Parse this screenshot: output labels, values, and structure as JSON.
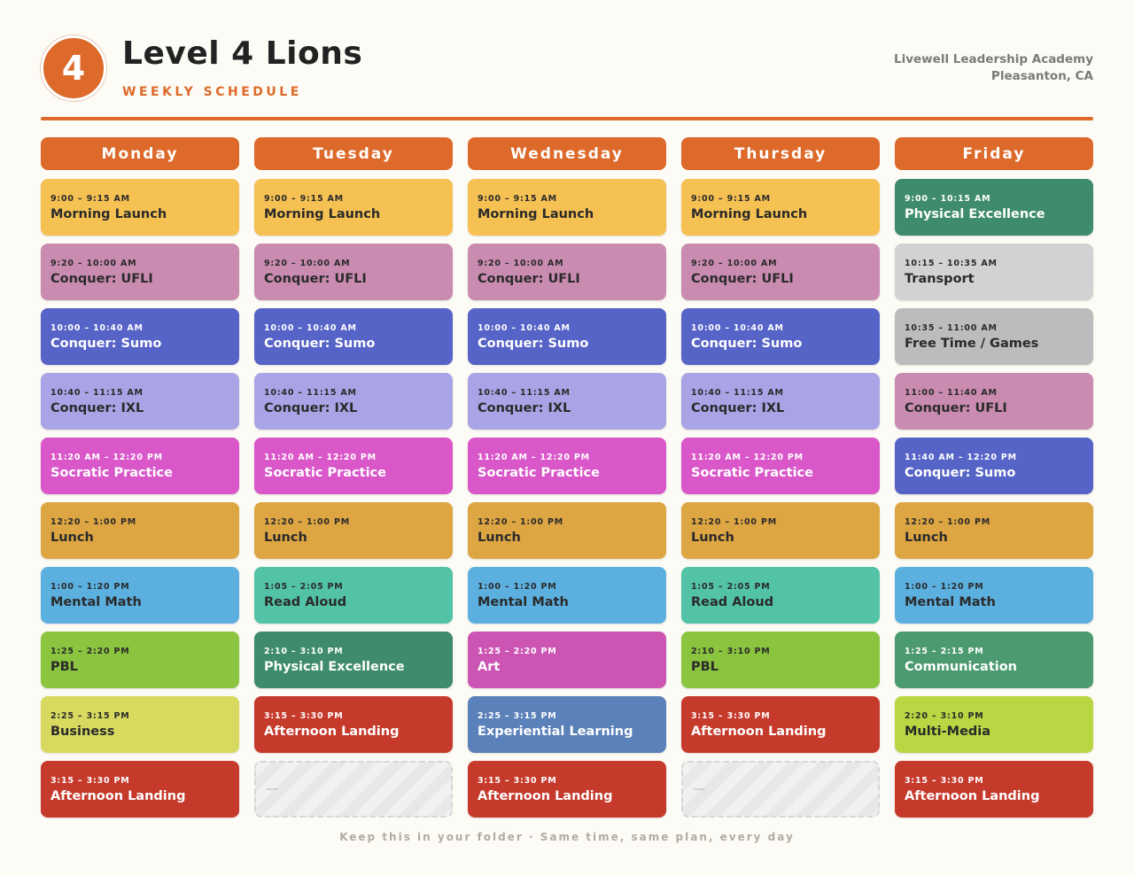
{
  "header": {
    "badge": "4",
    "title": "Level 4 Lions",
    "subtitle": "WEEKLY SCHEDULE",
    "school_name": "Livewell Leadership Academy",
    "school_location": "Pleasanton, CA"
  },
  "accent_color": "#dd6a2a",
  "days": [
    {
      "name": "Monday",
      "blocks": [
        {
          "time": "9:00 – 9:15 AM",
          "name": "Morning Launch",
          "color": "#f5c152",
          "text": "dark"
        },
        {
          "time": "9:20 – 10:00 AM",
          "name": "Conquer: UFLI",
          "color": "#c98bb0",
          "text": "dark"
        },
        {
          "time": "10:00 – 10:40 AM",
          "name": "Conquer: Sumo",
          "color": "#5663c7",
          "text": "light"
        },
        {
          "time": "10:40 – 11:15 AM",
          "name": "Conquer: IXL",
          "color": "#a9a4e6",
          "text": "dark"
        },
        {
          "time": "11:20 AM – 12:20 PM",
          "name": "Socratic Practice",
          "color": "#d957c9",
          "text": "light"
        },
        {
          "time": "12:20 – 1:00 PM",
          "name": "Lunch",
          "color": "#dea643",
          "text": "dark"
        },
        {
          "time": "1:00 – 1:20 PM",
          "name": "Mental Math",
          "color": "#5cb0e0",
          "text": "dark"
        },
        {
          "time": "1:25 – 2:20 PM",
          "name": "PBL",
          "color": "#8bc43f",
          "text": "dark"
        },
        {
          "time": "2:25 – 3:15 PM",
          "name": "Business",
          "color": "#d7da5e",
          "text": "dark"
        },
        {
          "time": "3:15 – 3:30 PM",
          "name": "Afternoon Landing",
          "color": "#c63a2c",
          "text": "light"
        }
      ]
    },
    {
      "name": "Tuesday",
      "blocks": [
        {
          "time": "9:00 – 9:15 AM",
          "name": "Morning Launch",
          "color": "#f5c152",
          "text": "dark"
        },
        {
          "time": "9:20 – 10:00 AM",
          "name": "Conquer: UFLI",
          "color": "#c98bb0",
          "text": "dark"
        },
        {
          "time": "10:00 – 10:40 AM",
          "name": "Conquer: Sumo",
          "color": "#5663c7",
          "text": "light"
        },
        {
          "time": "10:40 – 11:15 AM",
          "name": "Conquer: IXL",
          "color": "#a9a4e6",
          "text": "dark"
        },
        {
          "time": "11:20 AM – 12:20 PM",
          "name": "Socratic Practice",
          "color": "#d957c9",
          "text": "light"
        },
        {
          "time": "12:20 – 1:00 PM",
          "name": "Lunch",
          "color": "#dea643",
          "text": "dark"
        },
        {
          "time": "1:05 – 2:05 PM",
          "name": "Read Aloud",
          "color": "#52c3a6",
          "text": "dark"
        },
        {
          "time": "2:10 – 3:10 PM",
          "name": "Physical Excellence",
          "color": "#3e8c6b",
          "text": "light"
        },
        {
          "time": "3:15 – 3:30 PM",
          "name": "Afternoon Landing",
          "color": "#c63a2c",
          "text": "light"
        },
        {
          "empty": true,
          "name": "—"
        }
      ]
    },
    {
      "name": "Wednesday",
      "blocks": [
        {
          "time": "9:00 – 9:15 AM",
          "name": "Morning Launch",
          "color": "#f5c152",
          "text": "dark"
        },
        {
          "time": "9:20 – 10:00 AM",
          "name": "Conquer: UFLI",
          "color": "#c98bb0",
          "text": "dark"
        },
        {
          "time": "10:00 – 10:40 AM",
          "name": "Conquer: Sumo",
          "color": "#5663c7",
          "text": "light"
        },
        {
          "time": "10:40 – 11:15 AM",
          "name": "Conquer: IXL",
          "color": "#a9a4e6",
          "text": "dark"
        },
        {
          "time": "11:20 AM – 12:20 PM",
          "name": "Socratic Practice",
          "color": "#d957c9",
          "text": "light"
        },
        {
          "time": "12:20 – 1:00 PM",
          "name": "Lunch",
          "color": "#dea643",
          "text": "dark"
        },
        {
          "time": "1:00 – 1:20 PM",
          "name": "Mental Math",
          "color": "#5cb0e0",
          "text": "dark"
        },
        {
          "time": "1:25 – 2:20 PM",
          "name": "Art",
          "color": "#cc55b4",
          "text": "light"
        },
        {
          "time": "2:25 – 3:15 PM",
          "name": "Experiential Learning",
          "color": "#5b81ba",
          "text": "light"
        },
        {
          "time": "3:15 – 3:30 PM",
          "name": "Afternoon Landing",
          "color": "#c63a2c",
          "text": "light"
        }
      ]
    },
    {
      "name": "Thursday",
      "blocks": [
        {
          "time": "9:00 – 9:15 AM",
          "name": "Morning Launch",
          "color": "#f5c152",
          "text": "dark"
        },
        {
          "time": "9:20 – 10:00 AM",
          "name": "Conquer: UFLI",
          "color": "#c98bb0",
          "text": "dark"
        },
        {
          "time": "10:00 – 10:40 AM",
          "name": "Conquer: Sumo",
          "color": "#5663c7",
          "text": "light"
        },
        {
          "time": "10:40 – 11:15 AM",
          "name": "Conquer: IXL",
          "color": "#a9a4e6",
          "text": "dark"
        },
        {
          "time": "11:20 AM – 12:20 PM",
          "name": "Socratic Practice",
          "color": "#d957c9",
          "text": "light"
        },
        {
          "time": "12:20 – 1:00 PM",
          "name": "Lunch",
          "color": "#dea643",
          "text": "dark"
        },
        {
          "time": "1:05 – 2:05 PM",
          "name": "Read Aloud",
          "color": "#52c3a6",
          "text": "dark"
        },
        {
          "time": "2:10 – 3:10 PM",
          "name": "PBL",
          "color": "#8bc43f",
          "text": "dark"
        },
        {
          "time": "3:15 – 3:30 PM",
          "name": "Afternoon Landing",
          "color": "#c63a2c",
          "text": "light"
        },
        {
          "empty": true,
          "name": "—"
        }
      ]
    },
    {
      "name": "Friday",
      "blocks": [
        {
          "time": "9:00 – 10:15 AM",
          "name": "Physical Excellence",
          "color": "#3e8c6b",
          "text": "light"
        },
        {
          "time": "10:15 – 10:35 AM",
          "name": "Transport",
          "color": "#d2d2d2",
          "text": "dark"
        },
        {
          "time": "10:35 – 11:00 AM",
          "name": "Free Time / Games",
          "color": "#bcbcbc",
          "text": "dark"
        },
        {
          "time": "11:00 – 11:40 AM",
          "name": "Conquer: UFLI",
          "color": "#c98bb0",
          "text": "dark"
        },
        {
          "time": "11:40 AM – 12:20 PM",
          "name": "Conquer: Sumo",
          "color": "#5663c7",
          "text": "light"
        },
        {
          "time": "12:20 – 1:00 PM",
          "name": "Lunch",
          "color": "#dea643",
          "text": "dark"
        },
        {
          "time": "1:00 – 1:20 PM",
          "name": "Mental Math",
          "color": "#5cb0e0",
          "text": "dark"
        },
        {
          "time": "1:25 – 2:15 PM",
          "name": "Communication",
          "color": "#4c9a6f",
          "text": "light"
        },
        {
          "time": "2:20 – 3:10 PM",
          "name": "Multi-Media",
          "color": "#b9d643",
          "text": "dark"
        },
        {
          "time": "3:15 – 3:30 PM",
          "name": "Afternoon Landing",
          "color": "#c63a2c",
          "text": "light"
        }
      ]
    }
  ],
  "footer": "Keep this in your folder · Same time, same plan, every day"
}
